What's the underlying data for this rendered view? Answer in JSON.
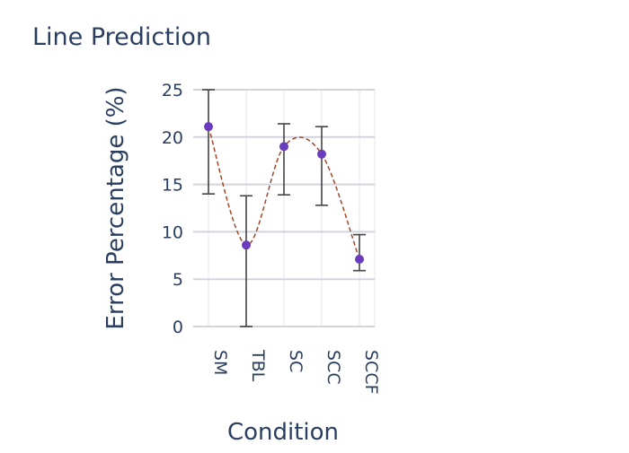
{
  "chart_data": {
    "type": "scatter",
    "title": "Line Prediction",
    "xlabel": "Condition",
    "ylabel": "Error Percentage (%)",
    "categories": [
      "SM",
      "TBL",
      "SC",
      "SCC",
      "SCCF"
    ],
    "series": [
      {
        "values": [
          21.1,
          8.6,
          19.0,
          18.2,
          7.1
        ],
        "error_upper": [
          25.0,
          13.8,
          21.4,
          21.1,
          9.7
        ],
        "error_lower": [
          14.0,
          0.0,
          13.9,
          12.8,
          5.9
        ]
      }
    ],
    "ylim": [
      0,
      25
    ],
    "yticks": [
      "0",
      "5",
      "10",
      "15",
      "20",
      "25"
    ],
    "grid": true,
    "trend_line": "dashed",
    "point_color": "#6a3bbf",
    "trend_color": "#a0472c",
    "error_bar_color": "#444444"
  }
}
